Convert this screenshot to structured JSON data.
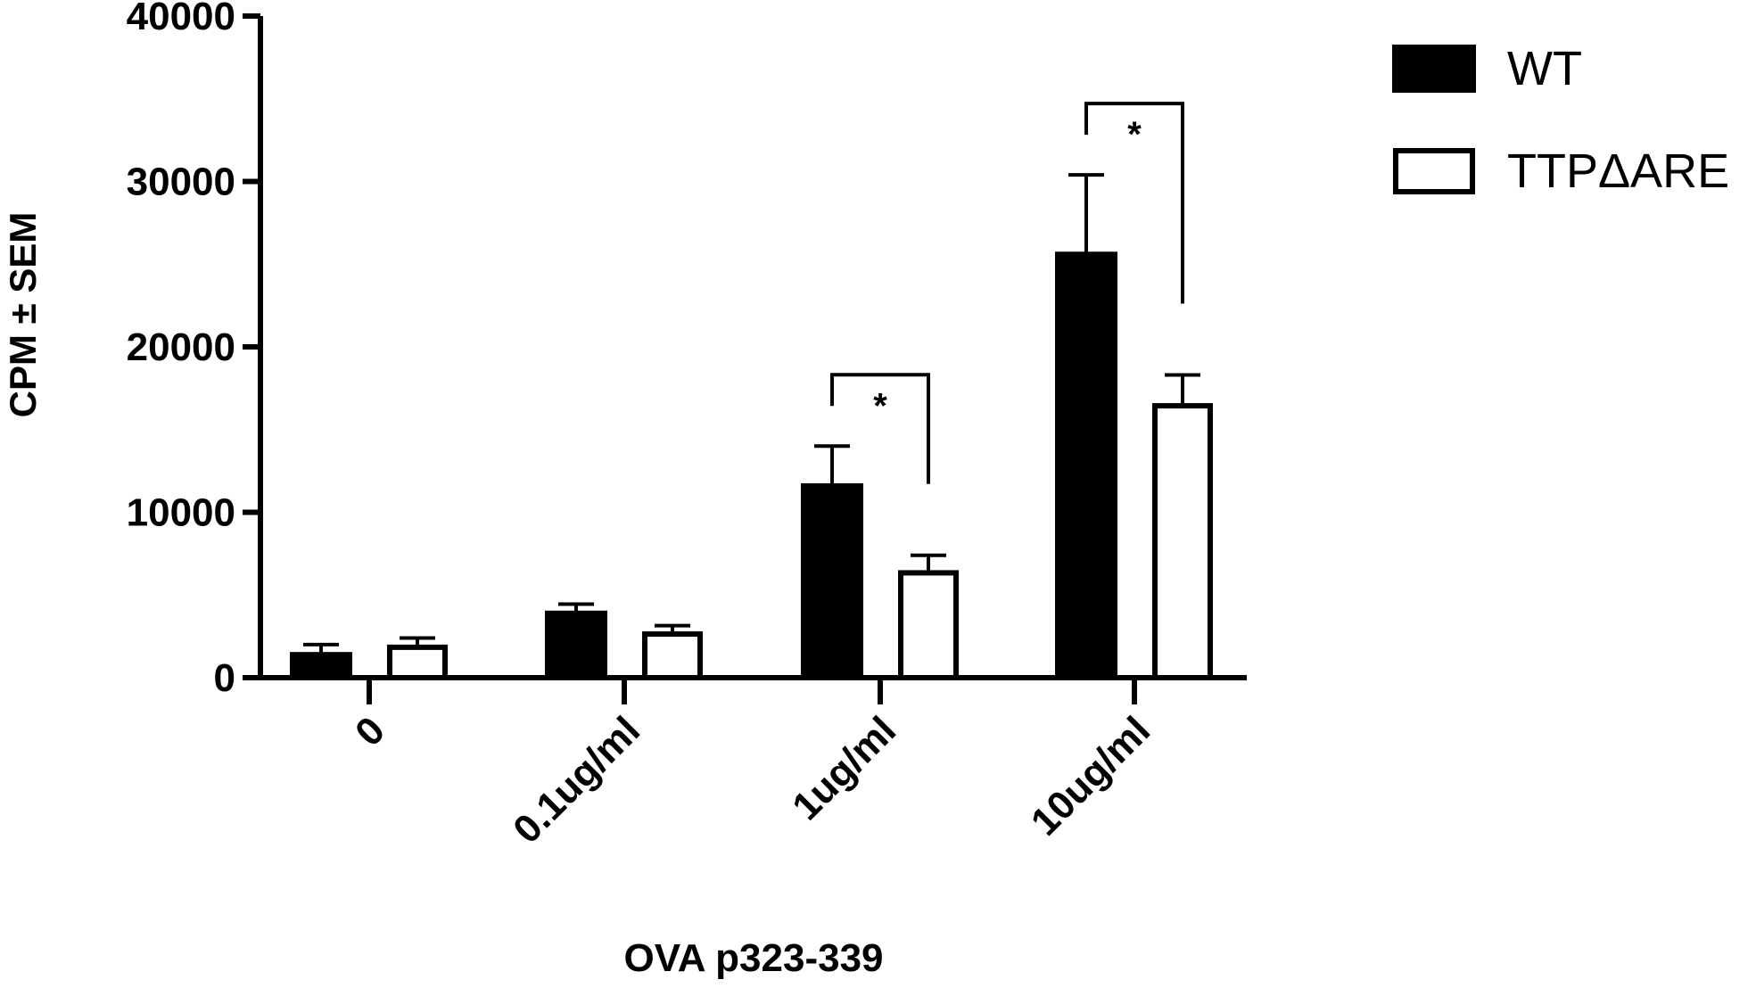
{
  "chart_data": {
    "type": "bar",
    "categories": [
      "0",
      "0.1ug/ml",
      "1ug/ml",
      "10ug/ml"
    ],
    "series": [
      {
        "name": "WT",
        "values": [
          1500,
          4000,
          11700,
          25700
        ],
        "errors": [
          500,
          450,
          2300,
          4700
        ],
        "fill": "#000000"
      },
      {
        "name": "TTPΔARE",
        "values": [
          2000,
          2800,
          6500,
          16600
        ],
        "errors": [
          400,
          350,
          900,
          1700
        ],
        "fill": "#ffffff"
      }
    ],
    "ylim": [
      0,
      40000
    ],
    "yticks": [
      "0",
      "10000",
      "20000",
      "30000",
      "40000"
    ],
    "xlabel": "OVA p323-339",
    "ylabel": "CPM ± SEM",
    "legend_position": "top-right",
    "significance": [
      {
        "category": "1ug/ml",
        "label": "*"
      },
      {
        "category": "10ug/ml",
        "label": "*"
      }
    ],
    "colors": {
      "axis": "#000000",
      "wt_fill": "#000000",
      "ttp_fill": "#ffffff",
      "bar_stroke": "#000000"
    }
  }
}
